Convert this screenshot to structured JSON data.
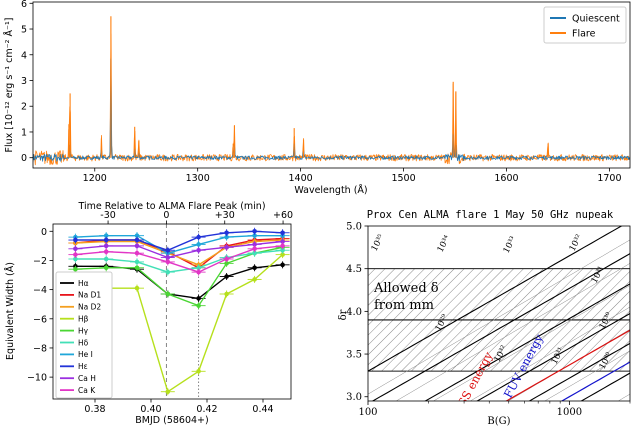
{
  "chart_data": [
    {
      "type": "line",
      "ylabel": "Flux [10⁻¹² erg s⁻¹ cm⁻² Å⁻¹]",
      "xlabel": "Wavelength (Å)",
      "xlim": [
        1140,
        1720
      ],
      "ylim": [
        -0.4,
        6.05
      ],
      "xticks": [
        "1200",
        "1300",
        "1400",
        "1500",
        "1600",
        "1700"
      ],
      "yticks": [
        "0",
        "1",
        "2",
        "3",
        "4",
        "5",
        "6"
      ],
      "legend_position": "top-right",
      "series": [
        {
          "name": "Quiescent",
          "color": "#1f77b4",
          "peaks": [
            [
              1175.7,
              0.5
            ],
            [
              1206.5,
              0.3
            ],
            [
              1215.7,
              3.85
            ],
            [
              1238.8,
              0.35
            ],
            [
              1242.8,
              0.2
            ],
            [
              1334.5,
              0.25
            ],
            [
              1335.7,
              0.5
            ],
            [
              1393.8,
              0.55
            ],
            [
              1402.8,
              0.3
            ],
            [
              1548.2,
              0.9
            ],
            [
              1550.8,
              0.5
            ],
            [
              1640.4,
              0.1
            ]
          ]
        },
        {
          "name": "Flare",
          "color": "#ff7f0e",
          "peaks": [
            [
              1174.9,
              1.3
            ],
            [
              1176.0,
              2.5
            ],
            [
              1206.5,
              0.75
            ],
            [
              1215.7,
              5.5
            ],
            [
              1238.8,
              1.2
            ],
            [
              1242.8,
              0.65
            ],
            [
              1334.5,
              0.55
            ],
            [
              1335.7,
              1.25
            ],
            [
              1393.8,
              1.15
            ],
            [
              1402.8,
              0.7
            ],
            [
              1548.2,
              2.95
            ],
            [
              1550.8,
              2.55
            ],
            [
              1640.4,
              0.55
            ]
          ]
        }
      ]
    },
    {
      "type": "line",
      "xlabel": "BMJD (58604+)",
      "ylabel": "Equivalent Width (Å)",
      "top_xlabel": "Time Relative to ALMA Flare Peak (min)",
      "xlim": [
        0.365,
        0.45
      ],
      "ylim": [
        -11.5,
        0.5
      ],
      "xticks": [
        "0.38",
        "0.40",
        "0.42",
        "0.44"
      ],
      "yticks": [
        "0",
        "−2",
        "−4",
        "−6",
        "−8",
        "−10"
      ],
      "top_xticks": [
        "-30",
        "0",
        "+30",
        "+60"
      ],
      "top_xtick_minutes": [
        -30,
        0,
        30,
        60
      ],
      "vlines": [
        0.4055,
        0.417
      ],
      "legend_position": "lower-left",
      "x": [
        0.373,
        0.384,
        0.395,
        0.406,
        0.417,
        0.427,
        0.437,
        0.447
      ],
      "series": [
        {
          "name": "Hα",
          "color": "#000000",
          "values": [
            -2.4,
            -2.4,
            -2.6,
            -4.3,
            -4.6,
            -3.1,
            -2.5,
            -2.3
          ]
        },
        {
          "name": "Na D1",
          "color": "#e8141b",
          "values": [
            -0.8,
            -0.6,
            -0.6,
            -1.4,
            -2.5,
            -1.0,
            -0.6,
            -0.5
          ]
        },
        {
          "name": "Na D2",
          "color": "#f4a020",
          "values": [
            -0.8,
            -0.7,
            -0.7,
            -1.5,
            -2.3,
            -1.1,
            -0.7,
            -0.6
          ]
        },
        {
          "name": "Hβ",
          "color": "#b6e01c",
          "values": [
            -3.9,
            -3.9,
            -3.9,
            -11.0,
            -9.6,
            -4.3,
            -3.3,
            -1.6
          ]
        },
        {
          "name": "Hγ",
          "color": "#4ad633",
          "values": [
            -2.6,
            -2.5,
            -2.5,
            -4.3,
            -5.1,
            -2.2,
            -1.5,
            -1.1
          ]
        },
        {
          "name": "Hδ",
          "color": "#42e0b7",
          "values": [
            -1.9,
            -1.9,
            -2.1,
            -2.8,
            -2.5,
            -1.8,
            -1.5,
            -1.3
          ]
        },
        {
          "name": "He I",
          "color": "#1fa7d9",
          "values": [
            -0.4,
            -0.3,
            -0.3,
            -1.5,
            -0.9,
            -0.4,
            -0.3,
            -0.3
          ]
        },
        {
          "name": "Hε",
          "color": "#2233d8",
          "values": [
            -0.6,
            -0.6,
            -0.6,
            -1.3,
            -0.4,
            -0.1,
            0.0,
            -0.1
          ]
        },
        {
          "name": "Ca H",
          "color": "#9b2fe0",
          "values": [
            -1.2,
            -1.0,
            -1.0,
            -1.8,
            -1.3,
            -1.1,
            -0.9,
            -0.7
          ]
        },
        {
          "name": "Ca K",
          "color": "#e236c6",
          "values": [
            -1.6,
            -1.4,
            -1.5,
            -2.1,
            -2.8,
            -1.9,
            -1.2,
            -1.0
          ]
        }
      ]
    },
    {
      "type": "line",
      "title": "Prox Cen ALMA flare 1 May 50 GHz nupeak",
      "xlabel": "B(G)",
      "ylabel": "δr",
      "x_scale": "log",
      "xlim": [
        100,
        2000
      ],
      "ylim": [
        2.95,
        5.0
      ],
      "xticks": [
        "100",
        "1000"
      ],
      "xtick_values": [
        100,
        1000
      ],
      "yticks": [
        "3.0",
        "3.5",
        "4.0",
        "4.5",
        "5.0"
      ],
      "allowed_region_label": "Allowed δ from mm",
      "allowed_bands": [
        [
          3.3,
          3.9
        ],
        [
          3.9,
          4.5
        ]
      ],
      "contour_labels": [
        "10³⁵",
        "10³⁴",
        "10³³",
        "10³²",
        "10³¹",
        "10³⁰",
        "10²⁹",
        "10³²",
        "10³¹",
        "10³⁰"
      ],
      "curves": [
        {
          "name": "TESS energy",
          "color": "#dd1111"
        },
        {
          "name": "FUV energy",
          "color": "#1414cc"
        }
      ]
    }
  ]
}
